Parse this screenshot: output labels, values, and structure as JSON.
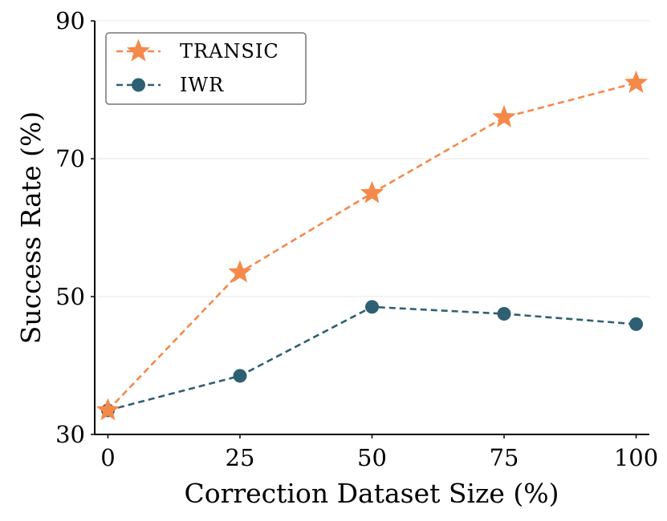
{
  "chart_data": {
    "type": "line",
    "x": [
      0,
      25,
      50,
      75,
      100
    ],
    "xticks": [
      "0",
      "25",
      "50",
      "75",
      "100"
    ],
    "yticks": [
      "30",
      "50",
      "70",
      "90"
    ],
    "xlabel": "Correction Dataset Size (%)",
    "ylabel": "Success Rate (%)",
    "xlim": [
      -2.5,
      102.5
    ],
    "ylim": [
      30,
      90
    ],
    "grid": "horizontal",
    "legend_position": "top-left",
    "series": [
      {
        "name": "TRANSIC",
        "values": [
          33.5,
          53.5,
          65,
          76,
          81
        ],
        "color": "#f5894a",
        "marker": "star",
        "linestyle": "dashed"
      },
      {
        "name": "IWR",
        "values": [
          33.5,
          38.5,
          48.5,
          47.5,
          46
        ],
        "color": "#2f5f73",
        "marker": "circle",
        "linestyle": "dashed"
      }
    ]
  }
}
